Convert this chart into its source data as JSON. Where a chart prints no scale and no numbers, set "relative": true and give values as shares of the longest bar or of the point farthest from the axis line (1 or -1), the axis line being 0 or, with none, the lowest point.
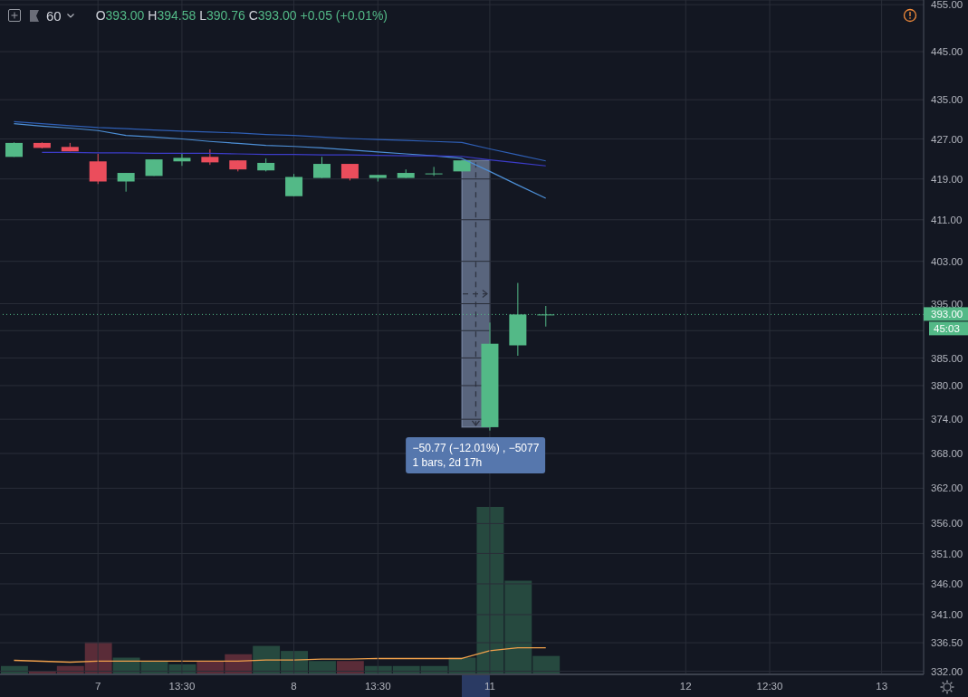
{
  "chart_data": [
    {
      "type": "candlestick",
      "title": "60",
      "subtitle": "O393.00 H394.58 L390.76 C393.00 +0.05 (+0.01%)",
      "categories": [
        null,
        null,
        null,
        "7",
        null,
        null,
        "13:30",
        null,
        null,
        null,
        "8",
        null,
        null,
        "13:30",
        null,
        null,
        null,
        "11",
        null,
        null,
        null,
        null,
        null,
        null,
        "12",
        null,
        null,
        "12:30",
        null,
        null,
        null,
        "13",
        null
      ],
      "ohlc": [
        [
          423.4,
          426.3,
          423.4,
          426.2
        ],
        [
          426.2,
          426.3,
          425.1,
          425.2
        ],
        [
          425.4,
          426.2,
          424.5,
          424.5
        ],
        [
          422.5,
          424.0,
          418.0,
          418.5
        ],
        [
          418.5,
          420.2,
          416.5,
          420.2
        ],
        [
          419.6,
          422.9,
          419.6,
          422.9
        ],
        [
          422.5,
          424.0,
          421.6,
          423.2
        ],
        [
          423.4,
          424.9,
          421.8,
          422.3
        ],
        [
          422.7,
          422.7,
          420.5,
          420.9
        ],
        [
          420.7,
          423.1,
          420.5,
          422.2
        ],
        [
          415.6,
          420.0,
          415.6,
          419.4
        ],
        [
          419.2,
          423.4,
          419.2,
          422.0
        ],
        [
          422.0,
          422.0,
          418.7,
          419.1
        ],
        [
          419.2,
          419.8,
          418.5,
          419.8
        ],
        [
          419.2,
          420.9,
          419.2,
          420.2
        ],
        [
          420.1,
          421.4,
          419.6,
          420.1
        ],
        [
          420.5,
          422.7,
          420.5,
          422.7
        ],
        [
          372.6,
          391.5,
          372.0,
          387.6
        ],
        [
          387.3,
          398.9,
          385.4,
          393.0
        ],
        [
          393.0,
          394.58,
          390.76,
          393.0
        ],
        null,
        null,
        null,
        null,
        null,
        null,
        null,
        null,
        null,
        null,
        null,
        null,
        null
      ],
      "colors": [
        "#53b987",
        "#eb4d5c",
        "#eb4d5c",
        "#eb4d5c",
        "#53b987",
        "#53b987",
        "#53b987",
        "#eb4d5c",
        "#eb4d5c",
        "#53b987",
        "#53b987",
        "#53b987",
        "#eb4d5c",
        "#53b987",
        "#53b987",
        "#53b987",
        "#53b987",
        "#53b987",
        "#53b987",
        "#53b987",
        null,
        null,
        null,
        null,
        null,
        null,
        null,
        null,
        null,
        null,
        null,
        null,
        null
      ],
      "series": [
        {
          "type": "line",
          "color": "#2f5fb5",
          "values": [
            430.5,
            430.1,
            429.7,
            429.3,
            429.1,
            428.8,
            428.6,
            428.4,
            428.2,
            427.9,
            427.7,
            427.4,
            427.1,
            426.9,
            426.7,
            426.5,
            426.3,
            425.0,
            423.8,
            422.6,
            null,
            null,
            null,
            null,
            null,
            null,
            null,
            null,
            null,
            null,
            null,
            null,
            null
          ]
        },
        {
          "type": "line",
          "color": "#4d8fd6",
          "values": [
            430.1,
            429.6,
            429.2,
            428.7,
            427.7,
            427.4,
            427.0,
            426.5,
            426.1,
            425.7,
            425.5,
            425.2,
            424.8,
            424.4,
            424.0,
            423.6,
            423.1,
            420.5,
            417.8,
            415.2,
            null,
            null,
            null,
            null,
            null,
            null,
            null,
            null,
            null,
            null,
            null,
            null,
            null
          ]
        },
        {
          "type": "line",
          "color": "#3c3cc8",
          "values": [
            null,
            424.3,
            424.3,
            424.2,
            424.2,
            424.1,
            424.1,
            424.1,
            424.0,
            423.9,
            423.9,
            423.8,
            423.8,
            423.7,
            423.6,
            423.6,
            423.5,
            422.8,
            422.2,
            421.6,
            null,
            null,
            null,
            null,
            null,
            null,
            null,
            null,
            null,
            null,
            null,
            null,
            null
          ]
        }
      ],
      "ylim": [
        331.5,
        456
      ],
      "log": true,
      "yticks": [
        {
          "value": 455,
          "label": "455.00"
        },
        {
          "value": 445,
          "label": "445.00"
        },
        {
          "value": 435,
          "label": "435.00"
        },
        {
          "value": 427,
          "label": "427.00"
        },
        {
          "value": 419,
          "label": "419.00"
        },
        {
          "value": 411,
          "label": "411.00"
        },
        {
          "value": 403,
          "label": "403.00"
        },
        {
          "value": 395,
          "label": "395.00"
        },
        {
          "value": 390,
          "label": null
        },
        {
          "value": 385,
          "label": "385.00"
        },
        {
          "value": 380,
          "label": "380.00"
        },
        {
          "value": 374,
          "label": "374.00"
        },
        {
          "value": 368,
          "label": "368.00"
        },
        {
          "value": 362,
          "label": "362.00"
        },
        {
          "value": 356,
          "label": "356.00"
        },
        {
          "value": 351,
          "label": "351.00"
        },
        {
          "value": 346,
          "label": "346.00"
        },
        {
          "value": 341,
          "label": "341.00"
        },
        {
          "value": 336.5,
          "label": "336.50"
        },
        {
          "value": 332,
          "label": "332.00"
        }
      ],
      "grid": true,
      "ref_lines": [
        {
          "axis": "y",
          "value": 393,
          "label": "393.00",
          "color": "#53b987",
          "line_style": "dotted"
        }
      ],
      "annotations": [
        "45:03",
        {
          "text": "−50.77 (−12.01%) , −5077",
          "x": "11",
          "y": 372.6
        },
        {
          "text": "1 bars, 2d 17h",
          "x": "11",
          "y": 372.6
        }
      ]
    },
    {
      "type": "bar",
      "relative": true,
      "categories": [
        null,
        null,
        null,
        null,
        null,
        null,
        null,
        null,
        null,
        null,
        null,
        null,
        null,
        null,
        null,
        null,
        null,
        null,
        null,
        null,
        null,
        null,
        null,
        null,
        null,
        null,
        null,
        null,
        null,
        null,
        null,
        null,
        null
      ],
      "series": [
        {
          "type": "bar",
          "values": [
            0.05,
            0.02,
            0.05,
            0.19,
            0.1,
            0.08,
            0.06,
            0.08,
            0.12,
            0.17,
            0.14,
            0.08,
            0.08,
            0.05,
            0.05,
            0.05,
            0.1,
            1,
            0.56,
            0.11,
            null,
            null,
            null,
            null,
            null,
            null,
            null,
            null,
            null,
            null,
            null,
            null,
            null
          ],
          "colors": [
            "#26493f",
            "#5a2c38",
            "#5a2c38",
            "#5a2c38",
            "#26493f",
            "#26493f",
            "#26493f",
            "#5a2c38",
            "#5a2c38",
            "#26493f",
            "#26493f",
            "#26493f",
            "#5a2c38",
            "#26493f",
            "#26493f",
            "#26493f",
            "#26493f",
            "#26493f",
            "#26493f",
            "#26493f",
            null,
            null,
            null,
            null,
            null,
            null,
            null,
            null,
            null,
            null,
            null,
            null,
            null
          ]
        },
        {
          "type": "line",
          "color": "#f0a04b",
          "values": [
            0.084,
            0.078,
            0.073,
            0.079,
            0.079,
            0.079,
            0.079,
            0.079,
            0.079,
            0.086,
            0.086,
            0.091,
            0.091,
            0.095,
            0.095,
            0.095,
            0.095,
            0.141,
            0.159,
            0.159,
            null,
            null,
            null,
            null,
            null,
            null,
            null,
            null,
            null,
            null,
            null,
            null,
            null
          ]
        }
      ]
    }
  ]
}
